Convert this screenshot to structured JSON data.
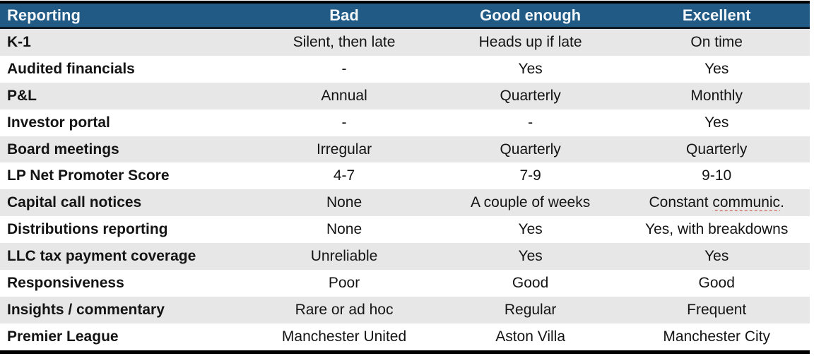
{
  "table": {
    "columns": [
      "Reporting",
      "Bad",
      "Good enough",
      "Excellent"
    ],
    "rows": [
      {
        "label": "K-1",
        "bad": "Silent, then late",
        "good_enough": "Heads up if late",
        "excellent": "On time"
      },
      {
        "label": "Audited financials",
        "bad": "-",
        "good_enough": "Yes",
        "excellent": "Yes"
      },
      {
        "label": "P&L",
        "bad": "Annual",
        "good_enough": "Quarterly",
        "excellent": "Monthly"
      },
      {
        "label": "Investor portal",
        "bad": "-",
        "good_enough": "-",
        "excellent": "Yes"
      },
      {
        "label": "Board meetings",
        "bad": "Irregular",
        "good_enough": "Quarterly",
        "excellent": "Quarterly"
      },
      {
        "label": "LP Net Promoter Score",
        "bad": "4-7",
        "good_enough": "7-9",
        "excellent": "9-10"
      },
      {
        "label": "Capital call notices",
        "bad": "None",
        "good_enough": "A couple of weeks",
        "excellent": {
          "prefix": "Constant ",
          "misspelled": "communic",
          "suffix": "."
        }
      },
      {
        "label": "Distributions reporting",
        "bad": "None",
        "good_enough": "Yes",
        "excellent": "Yes, with breakdowns"
      },
      {
        "label": "LLC tax payment coverage",
        "bad": "Unreliable",
        "good_enough": "Yes",
        "excellent": "Yes"
      },
      {
        "label": "Responsiveness",
        "bad": "Poor",
        "good_enough": "Good",
        "excellent": "Good"
      },
      {
        "label": "Insights / commentary",
        "bad": "Rare or ad hoc",
        "good_enough": "Regular",
        "excellent": "Frequent"
      },
      {
        "label": "Premier League",
        "bad": "Manchester United",
        "good_enough": "Aston Villa",
        "excellent": "Manchester City"
      }
    ]
  },
  "colors": {
    "header_bg": "#205A85",
    "header_text": "#F4F7FA",
    "header_separator": "#0E1B26",
    "alt_row_bg": "#E7E7E7",
    "row_bg": "#FFFFFF",
    "outer_border": "#000000",
    "body_text": "#141414",
    "spellcheck_underline": "#C75146"
  }
}
